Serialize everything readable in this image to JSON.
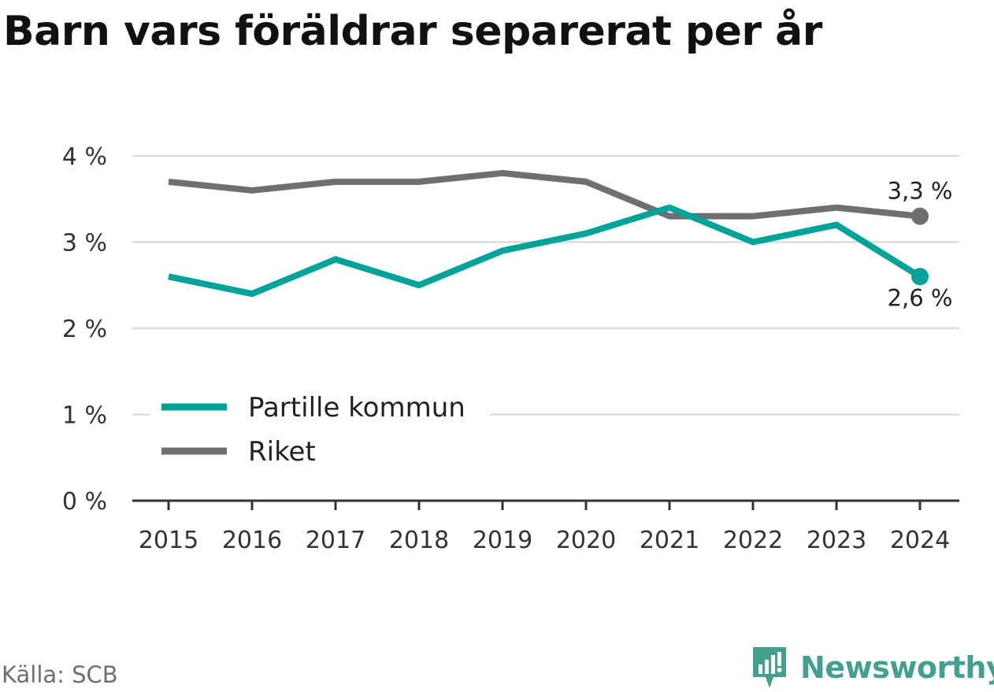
{
  "title": "Barn vars föräldrar separerat per år",
  "source": "Källa: SCB",
  "brand": "Newsworthy",
  "colors": {
    "partille": "#00a398",
    "riket": "#6e6e73",
    "grid": "#dcdcdc",
    "axis": "#333333",
    "brand": "#43a08f"
  },
  "chart_data": {
    "type": "line",
    "x": [
      "2015",
      "2016",
      "2017",
      "2018",
      "2019",
      "2020",
      "2021",
      "2022",
      "2023",
      "2024"
    ],
    "y_ticks": [
      "0 %",
      "1 %",
      "2 %",
      "3 %",
      "4 %"
    ],
    "ylim": [
      0,
      4
    ],
    "series": [
      {
        "name": "Partille kommun",
        "color": "#00a398",
        "values": [
          2.6,
          2.4,
          2.8,
          2.5,
          2.9,
          3.1,
          3.4,
          3.0,
          3.2,
          2.6
        ],
        "end_label": "2,6 %"
      },
      {
        "name": "Riket",
        "color": "#6e6e73",
        "values": [
          3.7,
          3.6,
          3.7,
          3.7,
          3.8,
          3.7,
          3.3,
          3.3,
          3.4,
          3.3
        ],
        "end_label": "3,3 %"
      }
    ],
    "legend": "bottom-left inside plot",
    "grid": true
  }
}
